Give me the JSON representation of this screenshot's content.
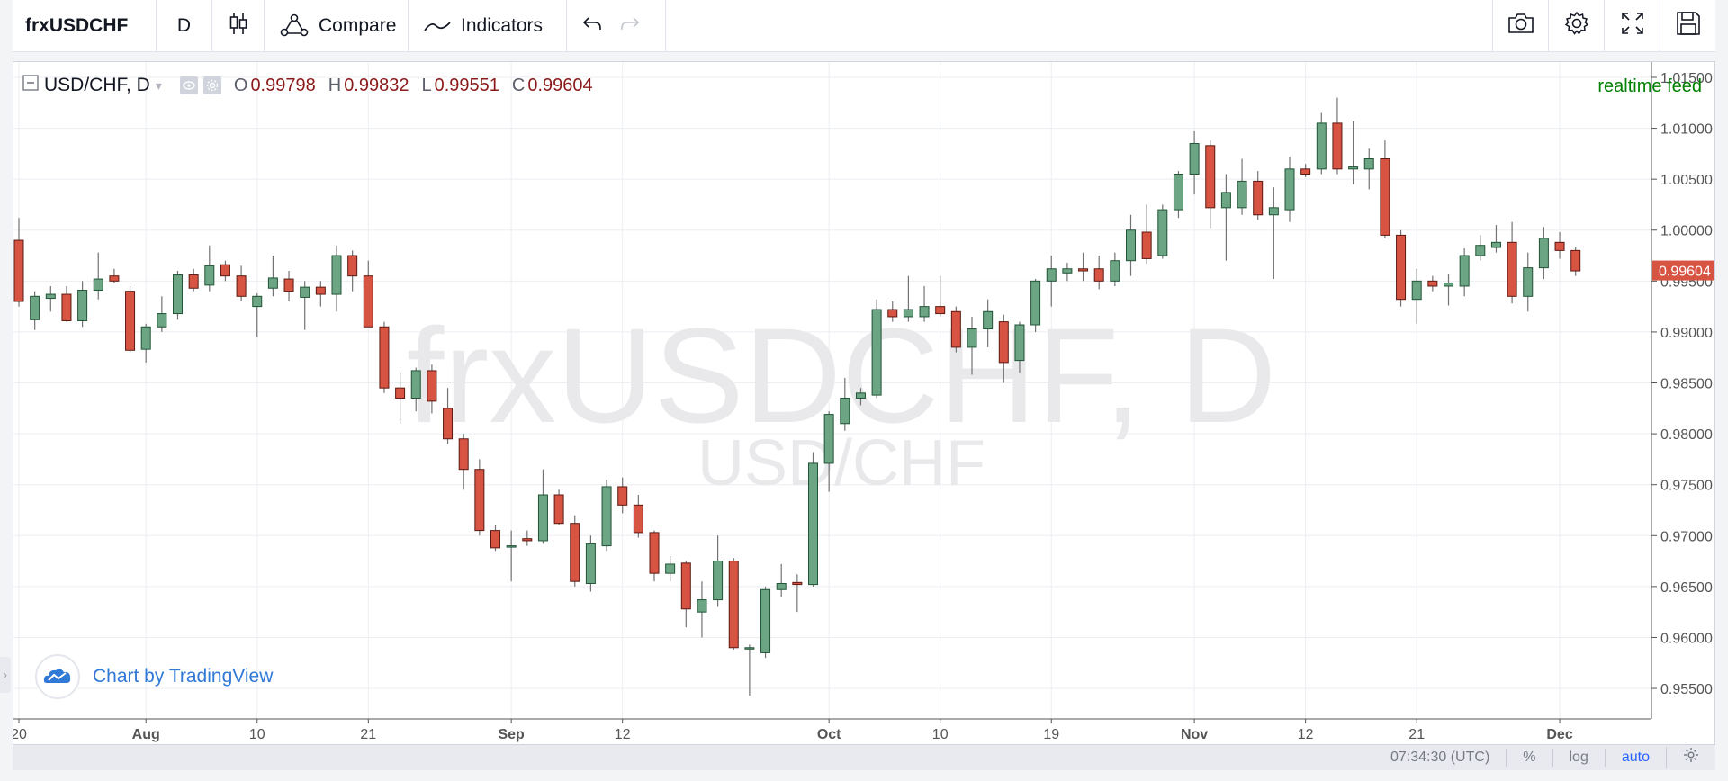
{
  "toolbar": {
    "symbol": "frxUSDCHF",
    "resolution": "D",
    "compare_label": "Compare",
    "indicators_label": "Indicators"
  },
  "legend": {
    "symbol_label": "USD/CHF, D",
    "open_label": "O",
    "open": "0.99798",
    "high_label": "H",
    "high": "0.99832",
    "low_label": "L",
    "low": "0.99551",
    "close_label": "C",
    "close": "0.99604"
  },
  "realtime_feed": "realtime feed",
  "watermark": {
    "main": "frxUSDCHF, D",
    "sub": "USD/CHF"
  },
  "branding": "Chart by TradingView",
  "bottom_bar": {
    "time": "07:34:30 (UTC)",
    "percent": "%",
    "log": "log",
    "auto": "auto"
  },
  "colors": {
    "up": "#6ba583",
    "down": "#d75442",
    "up_border": "#225437",
    "down_border": "#5b1a13",
    "last_price_bg": "#d75442"
  },
  "chart_data": {
    "type": "candlestick",
    "title": "USD/CHF, D",
    "ylim": [
      0.952,
      1.0165
    ],
    "y_ticks": [
      "1.01500",
      "1.01000",
      "1.00500",
      "1.00000",
      "0.99500",
      "0.99000",
      "0.98500",
      "0.98000",
      "0.97500",
      "0.97000",
      "0.96500",
      "0.96000",
      "0.95500"
    ],
    "x_ticks": [
      {
        "label": "20",
        "idx": 0
      },
      {
        "label": "Aug",
        "idx": 8
      },
      {
        "label": "10",
        "idx": 15
      },
      {
        "label": "21",
        "idx": 22
      },
      {
        "label": "Sep",
        "idx": 31
      },
      {
        "label": "12",
        "idx": 38
      },
      {
        "label": "Oct",
        "idx": 51
      },
      {
        "label": "10",
        "idx": 58
      },
      {
        "label": "19",
        "idx": 65
      },
      {
        "label": "Nov",
        "idx": 74
      },
      {
        "label": "12",
        "idx": 81
      },
      {
        "label": "21",
        "idx": 88
      },
      {
        "label": "Dec",
        "idx": 97
      }
    ],
    "last_price": "0.99604",
    "grid": true,
    "candles": [
      {
        "o": 0.999,
        "h": 1.0012,
        "l": 0.9925,
        "c": 0.993
      },
      {
        "o": 0.9912,
        "h": 0.994,
        "l": 0.9902,
        "c": 0.9935
      },
      {
        "o": 0.9933,
        "h": 0.9945,
        "l": 0.992,
        "c": 0.9937
      },
      {
        "o": 0.9937,
        "h": 0.9945,
        "l": 0.991,
        "c": 0.9911
      },
      {
        "o": 0.9911,
        "h": 0.995,
        "l": 0.9905,
        "c": 0.9941
      },
      {
        "o": 0.9941,
        "h": 0.9978,
        "l": 0.9932,
        "c": 0.9952
      },
      {
        "o": 0.9955,
        "h": 0.9962,
        "l": 0.9948,
        "c": 0.995
      },
      {
        "o": 0.994,
        "h": 0.9945,
        "l": 0.988,
        "c": 0.9882
      },
      {
        "o": 0.9883,
        "h": 0.9908,
        "l": 0.987,
        "c": 0.9905
      },
      {
        "o": 0.9905,
        "h": 0.9935,
        "l": 0.99,
        "c": 0.9918
      },
      {
        "o": 0.9918,
        "h": 0.996,
        "l": 0.9912,
        "c": 0.9956
      },
      {
        "o": 0.9956,
        "h": 0.9962,
        "l": 0.994,
        "c": 0.9943
      },
      {
        "o": 0.9946,
        "h": 0.9985,
        "l": 0.994,
        "c": 0.9965
      },
      {
        "o": 0.9966,
        "h": 0.997,
        "l": 0.995,
        "c": 0.9955
      },
      {
        "o": 0.9955,
        "h": 0.9965,
        "l": 0.993,
        "c": 0.9935
      },
      {
        "o": 0.9925,
        "h": 0.9938,
        "l": 0.9895,
        "c": 0.9935
      },
      {
        "o": 0.9943,
        "h": 0.9975,
        "l": 0.9935,
        "c": 0.9953
      },
      {
        "o": 0.9952,
        "h": 0.996,
        "l": 0.993,
        "c": 0.994
      },
      {
        "o": 0.9934,
        "h": 0.995,
        "l": 0.9902,
        "c": 0.9944
      },
      {
        "o": 0.9944,
        "h": 0.995,
        "l": 0.9925,
        "c": 0.9937
      },
      {
        "o": 0.9937,
        "h": 0.9985,
        "l": 0.992,
        "c": 0.9975
      },
      {
        "o": 0.9975,
        "h": 0.998,
        "l": 0.994,
        "c": 0.9955
      },
      {
        "o": 0.9955,
        "h": 0.997,
        "l": 0.9905,
        "c": 0.9905
      },
      {
        "o": 0.9905,
        "h": 0.991,
        "l": 0.984,
        "c": 0.9845
      },
      {
        "o": 0.9845,
        "h": 0.986,
        "l": 0.981,
        "c": 0.9835
      },
      {
        "o": 0.9835,
        "h": 0.9865,
        "l": 0.9822,
        "c": 0.9862
      },
      {
        "o": 0.9862,
        "h": 0.9868,
        "l": 0.982,
        "c": 0.9832
      },
      {
        "o": 0.9825,
        "h": 0.9845,
        "l": 0.979,
        "c": 0.9795
      },
      {
        "o": 0.9795,
        "h": 0.98,
        "l": 0.9745,
        "c": 0.9765
      },
      {
        "o": 0.9765,
        "h": 0.9775,
        "l": 0.97,
        "c": 0.9705
      },
      {
        "o": 0.9705,
        "h": 0.971,
        "l": 0.9685,
        "c": 0.9688
      },
      {
        "o": 0.9689,
        "h": 0.9705,
        "l": 0.9655,
        "c": 0.969
      },
      {
        "o": 0.9697,
        "h": 0.9705,
        "l": 0.969,
        "c": 0.9695
      },
      {
        "o": 0.9695,
        "h": 0.9765,
        "l": 0.9692,
        "c": 0.974
      },
      {
        "o": 0.974,
        "h": 0.9745,
        "l": 0.971,
        "c": 0.9712
      },
      {
        "o": 0.9712,
        "h": 0.972,
        "l": 0.965,
        "c": 0.9655
      },
      {
        "o": 0.9653,
        "h": 0.97,
        "l": 0.9645,
        "c": 0.9692
      },
      {
        "o": 0.969,
        "h": 0.9755,
        "l": 0.9685,
        "c": 0.9748
      },
      {
        "o": 0.9748,
        "h": 0.9757,
        "l": 0.9722,
        "c": 0.973
      },
      {
        "o": 0.973,
        "h": 0.974,
        "l": 0.9698,
        "c": 0.9703
      },
      {
        "o": 0.9703,
        "h": 0.9705,
        "l": 0.9655,
        "c": 0.9663
      },
      {
        "o": 0.9663,
        "h": 0.968,
        "l": 0.9655,
        "c": 0.9672
      },
      {
        "o": 0.9673,
        "h": 0.9675,
        "l": 0.961,
        "c": 0.9628
      },
      {
        "o": 0.9625,
        "h": 0.9655,
        "l": 0.96,
        "c": 0.9637
      },
      {
        "o": 0.9637,
        "h": 0.97,
        "l": 0.963,
        "c": 0.9675
      },
      {
        "o": 0.9675,
        "h": 0.9678,
        "l": 0.9588,
        "c": 0.959
      },
      {
        "o": 0.959,
        "h": 0.9593,
        "l": 0.9543,
        "c": 0.959
      },
      {
        "o": 0.9585,
        "h": 0.965,
        "l": 0.958,
        "c": 0.9647
      },
      {
        "o": 0.9647,
        "h": 0.9672,
        "l": 0.964,
        "c": 0.9653
      },
      {
        "o": 0.9654,
        "h": 0.9662,
        "l": 0.9625,
        "c": 0.9652
      },
      {
        "o": 0.9652,
        "h": 0.9782,
        "l": 0.965,
        "c": 0.9771
      },
      {
        "o": 0.9771,
        "h": 0.9822,
        "l": 0.9743,
        "c": 0.9819
      },
      {
        "o": 0.981,
        "h": 0.9855,
        "l": 0.9803,
        "c": 0.9835
      },
      {
        "o": 0.9835,
        "h": 0.9845,
        "l": 0.9828,
        "c": 0.984
      },
      {
        "o": 0.9838,
        "h": 0.9932,
        "l": 0.9835,
        "c": 0.9922
      },
      {
        "o": 0.9922,
        "h": 0.993,
        "l": 0.991,
        "c": 0.9915
      },
      {
        "o": 0.9915,
        "h": 0.9955,
        "l": 0.991,
        "c": 0.9922
      },
      {
        "o": 0.9915,
        "h": 0.9945,
        "l": 0.991,
        "c": 0.9925
      },
      {
        "o": 0.9925,
        "h": 0.9955,
        "l": 0.9915,
        "c": 0.9918
      },
      {
        "o": 0.992,
        "h": 0.9925,
        "l": 0.988,
        "c": 0.9885
      },
      {
        "o": 0.9885,
        "h": 0.9915,
        "l": 0.9858,
        "c": 0.9903
      },
      {
        "o": 0.9903,
        "h": 0.9932,
        "l": 0.9885,
        "c": 0.992
      },
      {
        "o": 0.991,
        "h": 0.9917,
        "l": 0.985,
        "c": 0.987
      },
      {
        "o": 0.9872,
        "h": 0.991,
        "l": 0.986,
        "c": 0.9907
      },
      {
        "o": 0.9907,
        "h": 0.9952,
        "l": 0.99,
        "c": 0.995
      },
      {
        "o": 0.995,
        "h": 0.9975,
        "l": 0.9925,
        "c": 0.9962
      },
      {
        "o": 0.9958,
        "h": 0.9968,
        "l": 0.995,
        "c": 0.9962
      },
      {
        "o": 0.9962,
        "h": 0.9978,
        "l": 0.995,
        "c": 0.996
      },
      {
        "o": 0.9962,
        "h": 0.9975,
        "l": 0.9942,
        "c": 0.995
      },
      {
        "o": 0.995,
        "h": 0.9978,
        "l": 0.9945,
        "c": 0.997
      },
      {
        "o": 0.997,
        "h": 1.0015,
        "l": 0.9955,
        "c": 1.0
      },
      {
        "o": 0.9998,
        "h": 1.0025,
        "l": 0.9967,
        "c": 0.9972
      },
      {
        "o": 0.9975,
        "h": 1.0025,
        "l": 0.9972,
        "c": 1.002
      },
      {
        "o": 1.002,
        "h": 1.0058,
        "l": 1.0012,
        "c": 1.0055
      },
      {
        "o": 1.0055,
        "h": 1.0097,
        "l": 1.0035,
        "c": 1.0085
      },
      {
        "o": 1.0083,
        "h": 1.0088,
        "l": 1.0002,
        "c": 1.0022
      },
      {
        "o": 1.0022,
        "h": 1.0055,
        "l": 0.997,
        "c": 1.0037
      },
      {
        "o": 1.0022,
        "h": 1.007,
        "l": 1.0015,
        "c": 1.0048
      },
      {
        "o": 1.0048,
        "h": 1.0058,
        "l": 1.001,
        "c": 1.0015
      },
      {
        "o": 1.0015,
        "h": 1.0042,
        "l": 0.9952,
        "c": 1.0022
      },
      {
        "o": 1.002,
        "h": 1.0072,
        "l": 1.0008,
        "c": 1.006
      },
      {
        "o": 1.006,
        "h": 1.0065,
        "l": 1.0052,
        "c": 1.0055
      },
      {
        "o": 1.006,
        "h": 1.0115,
        "l": 1.0055,
        "c": 1.0105
      },
      {
        "o": 1.0105,
        "h": 1.013,
        "l": 1.0055,
        "c": 1.006
      },
      {
        "o": 1.006,
        "h": 1.0107,
        "l": 1.0045,
        "c": 1.0062
      },
      {
        "o": 1.006,
        "h": 1.008,
        "l": 1.004,
        "c": 1.007
      },
      {
        "o": 1.007,
        "h": 1.0088,
        "l": 0.9992,
        "c": 0.9995
      },
      {
        "o": 0.9995,
        "h": 1.0,
        "l": 0.9925,
        "c": 0.9932
      },
      {
        "o": 0.9932,
        "h": 0.9962,
        "l": 0.9908,
        "c": 0.995
      },
      {
        "o": 0.995,
        "h": 0.9955,
        "l": 0.994,
        "c": 0.9945
      },
      {
        "o": 0.9945,
        "h": 0.9957,
        "l": 0.9926,
        "c": 0.9948
      },
      {
        "o": 0.9945,
        "h": 0.9982,
        "l": 0.9935,
        "c": 0.9975
      },
      {
        "o": 0.9975,
        "h": 0.9995,
        "l": 0.997,
        "c": 0.9985
      },
      {
        "o": 0.9983,
        "h": 1.0005,
        "l": 0.9978,
        "c": 0.9988
      },
      {
        "o": 0.9988,
        "h": 1.0008,
        "l": 0.9928,
        "c": 0.9935
      },
      {
        "o": 0.9935,
        "h": 0.9978,
        "l": 0.992,
        "c": 0.9963
      },
      {
        "o": 0.9963,
        "h": 1.0003,
        "l": 0.9952,
        "c": 0.9992
      },
      {
        "o": 0.9988,
        "h": 0.9998,
        "l": 0.9972,
        "c": 0.998
      },
      {
        "o": 0.998,
        "h": 0.9983,
        "l": 0.9955,
        "c": 0.996
      }
    ]
  }
}
